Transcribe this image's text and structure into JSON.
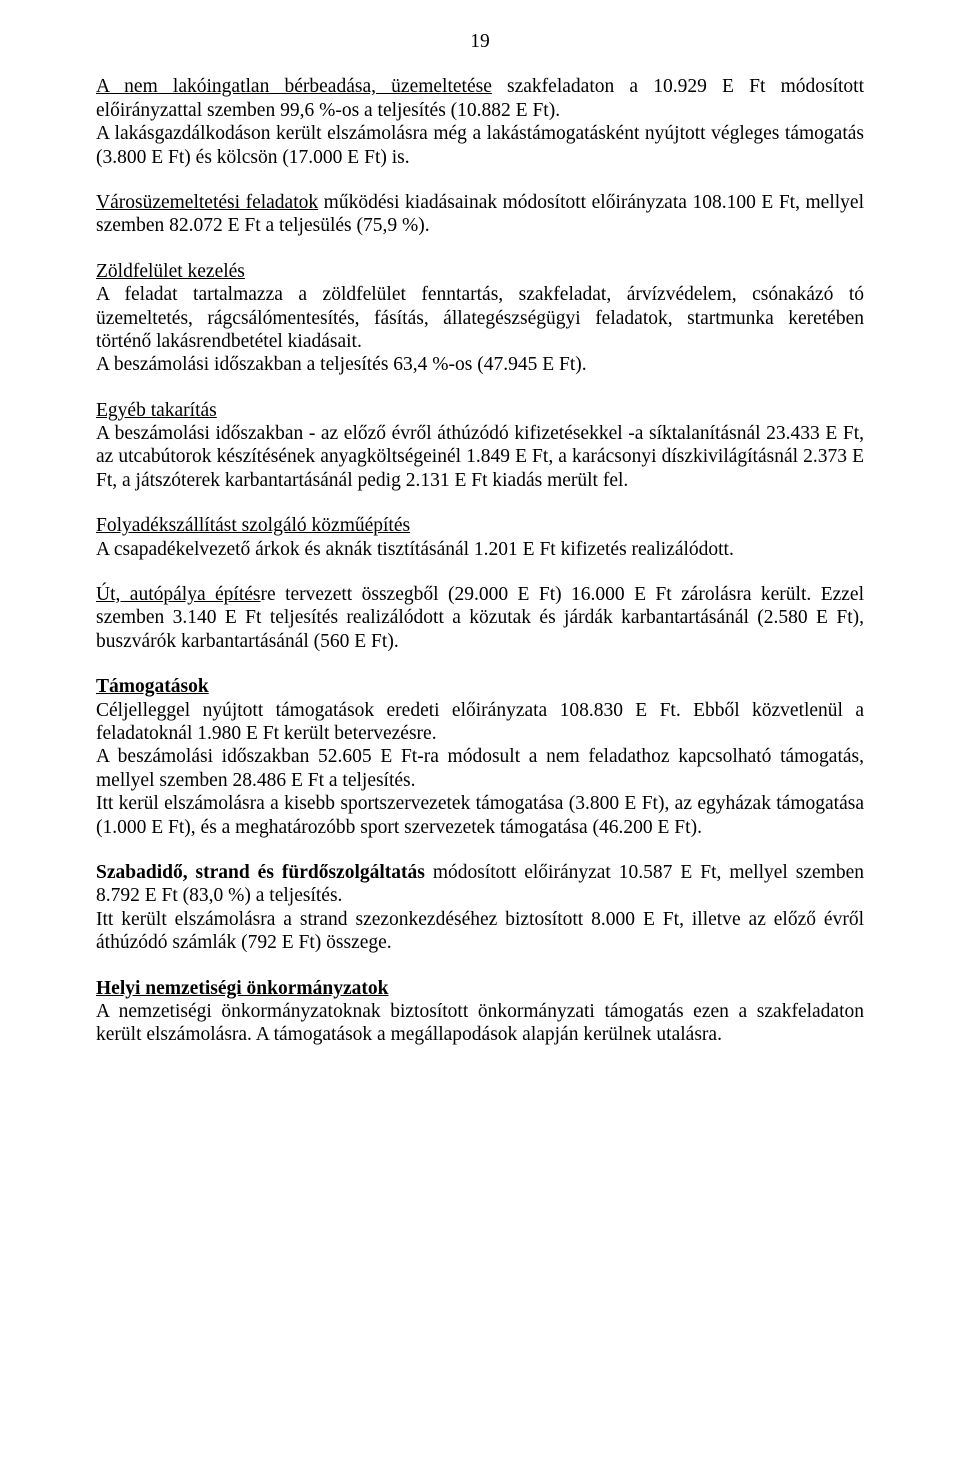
{
  "pageNumber": "19",
  "p1_a": "A nem lakóingatlan bérbeadása, üzemeltetése",
  "p1_b": " szakfeladaton a 10.929 E Ft módosított előirányzattal szemben 99,6 %-os a teljesítés (10.882 E Ft).",
  "p1_c": "A lakásgazdálkodáson került elszámolásra még a lakástámogatásként nyújtott végleges támogatás (3.800 E Ft) és kölcsön (17.000 E Ft) is.",
  "p2_a": "Városüzemeltetési feladatok",
  "p2_b": " működési kiadásainak módosított előirányzata 108.100 E Ft, mellyel szemben 82.072 E Ft a teljesülés (75,9 %).",
  "p3_h": "Zöldfelület kezelés",
  "p3_b": "A feladat tartalmazza a zöldfelület fenntartás, szakfeladat, árvízvédelem, csónakázó tó üzemeltetés, rágcsálómentesítés, fásítás, állategészségügyi feladatok, startmunka keretében történő lakásrendbetétel kiadásait.",
  "p3_c": "A beszámolási időszakban a teljesítés 63,4 %-os (47.945 E Ft).",
  "p4_h": "Egyéb takarítás",
  "p4_b": "A beszámolási időszakban - az előző évről áthúzódó kifizetésekkel -a síktalanításnál 23.433 E Ft, az utcabútorok készítésének anyagköltségeinél 1.849 E Ft, a karácsonyi díszkivilágításnál 2.373 E Ft, a játszóterek karbantartásánál pedig 2.131 E Ft kiadás merült fel.",
  "p5_h": "Folyadékszállítást szolgáló közműépítés",
  "p5_b": "A csapadékelvezető árkok és aknák tisztításánál 1.201 E Ft kifizetés realizálódott.",
  "p6_a": "Út, autópálya építés",
  "p6_b": "re tervezett összegből (29.000 E Ft) 16.000 E Ft zárolásra került. Ezzel szemben 3.140 E Ft teljesítés realizálódott a közutak és járdák karbantartásánál (2.580 E Ft), buszvárók karbantartásánál (560 E Ft).",
  "p7_h": "Támogatások",
  "p7_b1": "Céljelleggel nyújtott támogatások eredeti előirányzata 108.830 E Ft. Ebből közvetlenül a feladatoknál 1.980 E Ft került betervezésre.",
  "p7_b2": "A beszámolási időszakban 52.605 E Ft-ra módosult a nem feladathoz kapcsolható támogatás, mellyel szemben 28.486 E Ft a teljesítés.",
  "p7_b3": "Itt kerül elszámolásra a kisebb sportszervezetek támogatása (3.800 E Ft), az egyházak támogatása (1.000 E Ft), és a meghatározóbb sport szervezetek támogatása (46.200 E Ft).",
  "p8_a": "Szabadidő, strand és fürdőszolgáltatás",
  "p8_b": " módosított előirányzat 10.587 E Ft, mellyel szemben 8.792 E Ft (83,0 %) a teljesítés.",
  "p8_c": "Itt került elszámolásra a strand szezonkezdéséhez biztosított 8.000 E Ft, illetve az előző évről áthúzódó számlák (792 E Ft) összege.",
  "p9_h": "Helyi nemzetiségi önkormányzatok",
  "p9_b": "A nemzetiségi önkormányzatoknak biztosított önkormányzati támogatás ezen a szakfeladaton került elszámolásra. A támogatások a megállapodások alapján kerülnek utalásra."
}
